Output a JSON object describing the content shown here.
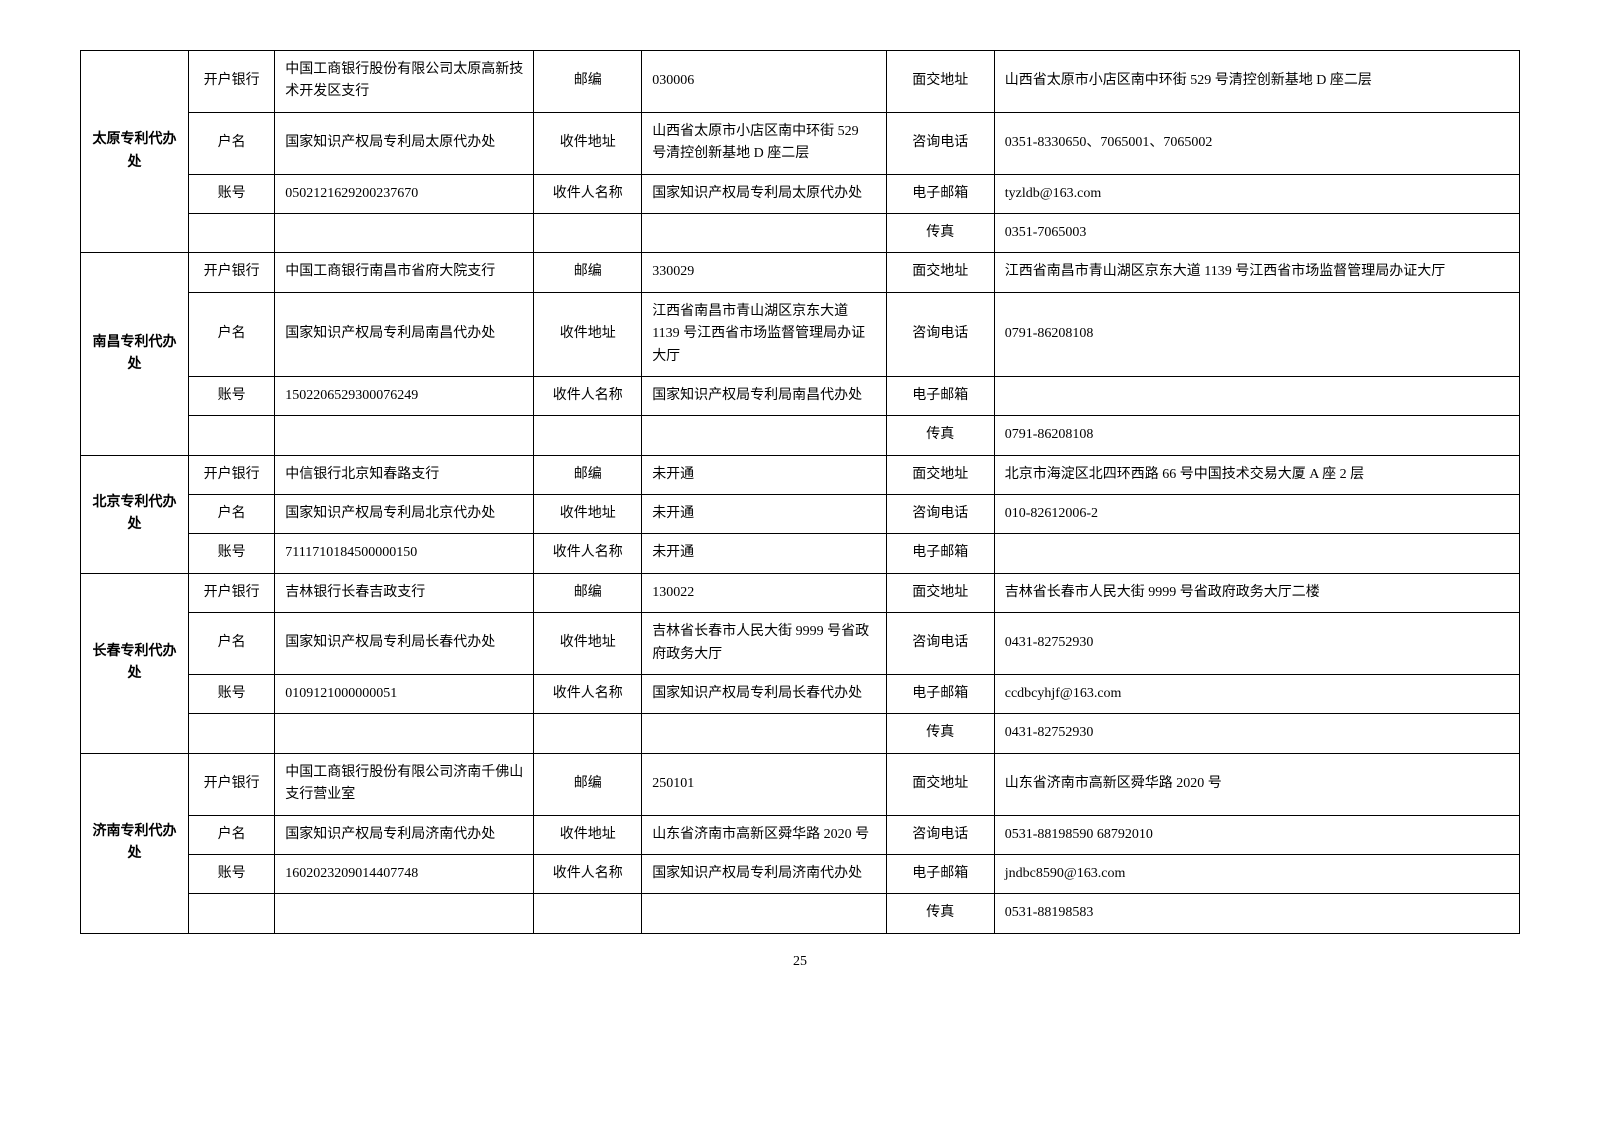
{
  "page_number": "25",
  "labels": {
    "bank": "开户银行",
    "acct_name": "户名",
    "acct_no": "账号",
    "postcode": "邮编",
    "recv_addr": "收件地址",
    "recv_name": "收件人名称",
    "visit_addr": "面交地址",
    "phone": "咨询电话",
    "email": "电子邮箱",
    "fax": "传真"
  },
  "offices": [
    {
      "name": "太原专利代办处",
      "bank": "中国工商银行股份有限公司太原高新技术开发区支行",
      "acct_name": "国家知识产权局专利局太原代办处",
      "acct_no": "0502121629200237670",
      "postcode": "030006",
      "recv_addr": "山西省太原市小店区南中环街 529 号清控创新基地 D 座二层",
      "recv_name": "国家知识产权局专利局太原代办处",
      "visit_addr": "山西省太原市小店区南中环街 529 号清控创新基地 D 座二层",
      "phone": "0351-8330650、7065001、7065002",
      "email": "tyzldb@163.com",
      "fax": "0351-7065003"
    },
    {
      "name": "南昌专利代办处",
      "bank": "中国工商银行南昌市省府大院支行",
      "acct_name": "国家知识产权局专利局南昌代办处",
      "acct_no": "1502206529300076249",
      "postcode": "330029",
      "recv_addr": "江西省南昌市青山湖区京东大道 1139 号江西省市场监督管理局办证大厅",
      "recv_name": "国家知识产权局专利局南昌代办处",
      "visit_addr": "江西省南昌市青山湖区京东大道 1139 号江西省市场监督管理局办证大厅",
      "phone": "0791-86208108",
      "email": "",
      "fax": "0791-86208108"
    },
    {
      "name": "北京专利代办处",
      "bank": "中信银行北京知春路支行",
      "acct_name": "国家知识产权局专利局北京代办处",
      "acct_no": "7111710184500000150",
      "postcode": "未开通",
      "recv_addr": "未开通",
      "recv_name": "未开通",
      "visit_addr": "北京市海淀区北四环西路 66 号中国技术交易大厦 A 座 2 层",
      "phone": "010-82612006-2",
      "email": "",
      "fax": null
    },
    {
      "name": "长春专利代办处",
      "bank": "吉林银行长春吉政支行",
      "acct_name": "国家知识产权局专利局长春代办处",
      "acct_no": "0109121000000051",
      "postcode": "130022",
      "recv_addr": "吉林省长春市人民大街 9999 号省政府政务大厅",
      "recv_name": "国家知识产权局专利局长春代办处",
      "visit_addr": "吉林省长春市人民大街 9999 号省政府政务大厅二楼",
      "phone": "0431-82752930",
      "email": "ccdbcyhjf@163.com",
      "fax": "0431-82752930"
    },
    {
      "name": "济南专利代办处",
      "bank": "中国工商银行股份有限公司济南千佛山支行营业室",
      "acct_name": "国家知识产权局专利局济南代办处",
      "acct_no": "1602023209014407748",
      "postcode": "250101",
      "recv_addr": "山东省济南市高新区舜华路 2020 号",
      "recv_name": "国家知识产权局专利局济南代办处",
      "visit_addr": "山东省济南市高新区舜华路 2020 号",
      "phone": "0531-88198590 68792010",
      "email": "jndbc8590@163.com",
      "fax": "0531-88198583"
    }
  ]
}
